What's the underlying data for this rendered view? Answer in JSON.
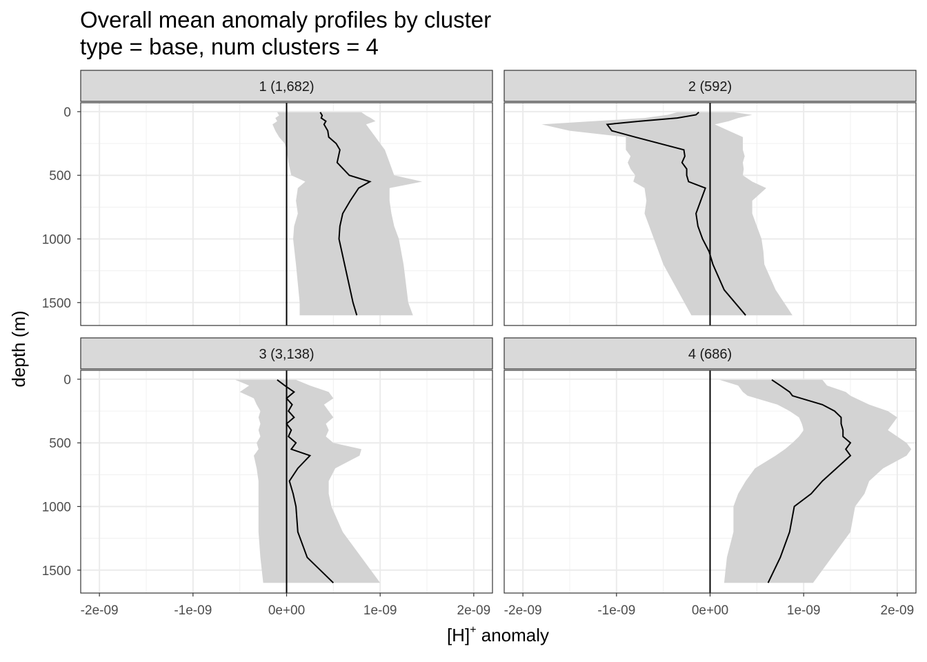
{
  "chart_data": {
    "type": "line",
    "title": "Overall mean anomaly profiles by cluster",
    "subtitle": "type = base, num clusters = 4",
    "xlabel_main": "[H]",
    "xlabel_sup": "+",
    "xlabel_rest": " anomaly",
    "ylabel": "depth (m)",
    "xlim": [
      -2.2e-09,
      2.2e-09
    ],
    "ylim": [
      1680,
      -70
    ],
    "x_ticks": [
      -2e-09,
      -1e-09,
      0,
      1e-09,
      2e-09
    ],
    "x_tick_labels": [
      "-2e-09",
      "-1e-09",
      "0e+00",
      "1e-09",
      "2e-09"
    ],
    "y_ticks": [
      0,
      500,
      1000,
      1500
    ],
    "y_tick_labels": [
      "0",
      "500",
      "1000",
      "1500"
    ],
    "ribbon_color": "#d3d3d3",
    "line_color": "#000000",
    "panels": [
      {
        "label": "1 (1,682)",
        "depth": [
          5,
          30,
          50,
          75,
          100,
          150,
          200,
          250,
          300,
          400,
          500,
          550,
          600,
          700,
          800,
          900,
          1000,
          1200,
          1500,
          1600
        ],
        "mean": [
          3.6e-10,
          3.8e-10,
          3.7e-10,
          4.2e-10,
          4e-10,
          4.4e-10,
          4.5e-10,
          5.3e-10,
          5.7e-10,
          5.4e-10,
          6.7e-10,
          8.9e-10,
          7.7e-10,
          6.8e-10,
          6e-10,
          5.7e-10,
          5.6e-10,
          6.2e-10,
          7.1e-10,
          7.5e-10
        ],
        "lower": [
          -1e-10,
          -8e-11,
          -1.2e-10,
          -1e-10,
          -1.5e-10,
          -1.2e-10,
          -8e-11,
          -2e-11,
          0.0,
          2e-11,
          5e-11,
          2e-10,
          1.2e-10,
          1e-10,
          1.2e-10,
          8e-11,
          7e-11,
          1e-10,
          1.4e-10,
          1.4e-10
        ],
        "upper": [
          8e-10,
          8.5e-10,
          9e-10,
          9.5e-10,
          8.5e-10,
          9e-10,
          9.5e-10,
          1e-09,
          1.05e-09,
          1.1e-09,
          1.15e-09,
          1.45e-09,
          1.1e-09,
          1.1e-09,
          1.12e-09,
          1.15e-09,
          1.2e-09,
          1.25e-09,
          1.3e-09,
          1.35e-09
        ]
      },
      {
        "label": "2 (592)",
        "depth": [
          5,
          25,
          50,
          75,
          100,
          150,
          200,
          300,
          350,
          400,
          450,
          500,
          550,
          600,
          700,
          800,
          900,
          1000,
          1100,
          1200,
          1400,
          1600
        ],
        "mean": [
          -1.2e-10,
          -1.5e-10,
          -3.5e-10,
          -7.5e-10,
          -1.1e-09,
          -1.05e-09,
          -8e-10,
          -2.8e-10,
          -2.7e-10,
          -3e-10,
          -2.5e-10,
          -2.5e-10,
          -2.3e-10,
          -5e-11,
          -1e-10,
          -1.5e-10,
          -1.3e-10,
          -8e-11,
          -1e-11,
          3e-11,
          1.5e-10,
          3.8e-10
        ],
        "lower": [
          -3.5e-10,
          -4.5e-10,
          -7e-10,
          -1.25e-09,
          -1.8e-09,
          -1.5e-09,
          -9e-10,
          -9e-10,
          -8.5e-10,
          -8.8e-10,
          -8.5e-10,
          -8e-10,
          -8.2e-10,
          -7e-10,
          -6.8e-10,
          -7e-10,
          -6.5e-10,
          -6e-10,
          -5.5e-10,
          -5e-10,
          -3.5e-10,
          -2e-10
        ],
        "upper": [
          2.5e-10,
          4.5e-10,
          3e-10,
          2e-10,
          5e-11,
          2e-10,
          3.5e-10,
          3.5e-10,
          3.7e-10,
          3.5e-10,
          3.6e-10,
          3.5e-10,
          4.5e-10,
          6e-10,
          4.5e-10,
          4.5e-10,
          5e-10,
          5.5e-10,
          5.7e-10,
          5.8e-10,
          7e-10,
          8.8e-10
        ]
      },
      {
        "label": "3 (3,138)",
        "depth": [
          5,
          50,
          100,
          150,
          200,
          250,
          300,
          350,
          400,
          450,
          500,
          550,
          600,
          700,
          800,
          900,
          1000,
          1200,
          1400,
          1600
        ],
        "mean": [
          -1e-10,
          -2e-11,
          8e-11,
          0.0,
          6e-11,
          2e-11,
          8e-11,
          0.0,
          5e-11,
          2e-11,
          1e-10,
          5e-11,
          2.5e-10,
          1.2e-10,
          3e-11,
          7e-11,
          1e-10,
          1.2e-10,
          2.2e-10,
          5e-10
        ],
        "lower": [
          -5.5e-10,
          -4e-10,
          -5e-10,
          -3.5e-10,
          -3.2e-10,
          -2.8e-10,
          -3e-10,
          -2.8e-10,
          -3e-10,
          -2.8e-10,
          -3.2e-10,
          -3e-10,
          -3.5e-10,
          -3.2e-10,
          -3e-10,
          -3e-10,
          -3e-10,
          -3e-10,
          -2.8e-10,
          -2.5e-10
        ],
        "upper": [
          1e-10,
          2.5e-10,
          4.5e-10,
          5e-10,
          4e-10,
          4.5e-10,
          5e-10,
          4.2e-10,
          4.5e-10,
          4.2e-10,
          5e-10,
          8e-10,
          7.8e-10,
          5.2e-10,
          4.5e-10,
          4.5e-10,
          4.8e-10,
          6e-10,
          8e-10,
          1e-09
        ]
      },
      {
        "label": "4 (686)",
        "depth": [
          5,
          50,
          100,
          130,
          200,
          250,
          300,
          350,
          400,
          450,
          500,
          550,
          600,
          700,
          800,
          900,
          1000,
          1200,
          1400,
          1600
        ],
        "mean": [
          6.6e-10,
          7.5e-10,
          8.5e-10,
          8.8e-10,
          1.2e-09,
          1.33e-09,
          1.4e-09,
          1.4e-09,
          1.42e-09,
          1.42e-09,
          1.5e-09,
          1.45e-09,
          1.5e-09,
          1.35e-09,
          1.2e-09,
          1.08e-09,
          9e-10,
          8.5e-10,
          7.5e-10,
          6.2e-10
        ],
        "lower": [
          1e-10,
          3e-10,
          3.5e-10,
          4e-10,
          7.2e-10,
          8.5e-10,
          9.5e-10,
          9.8e-10,
          1e-09,
          9.5e-10,
          8.8e-10,
          8e-10,
          7e-10,
          4.8e-10,
          3.8e-10,
          3e-10,
          2.5e-10,
          2.5e-10,
          1.8e-10,
          1.5e-10
        ],
        "upper": [
          1.2e-09,
          1.25e-09,
          1.45e-09,
          1.5e-09,
          1.7e-09,
          1.9e-09,
          2e-09,
          1.95e-09,
          1.9e-09,
          2e-09,
          2.1e-09,
          2.15e-09,
          2.1e-09,
          1.85e-09,
          1.7e-09,
          1.65e-09,
          1.55e-09,
          1.5e-09,
          1.3e-09,
          1.1e-09
        ]
      }
    ]
  }
}
